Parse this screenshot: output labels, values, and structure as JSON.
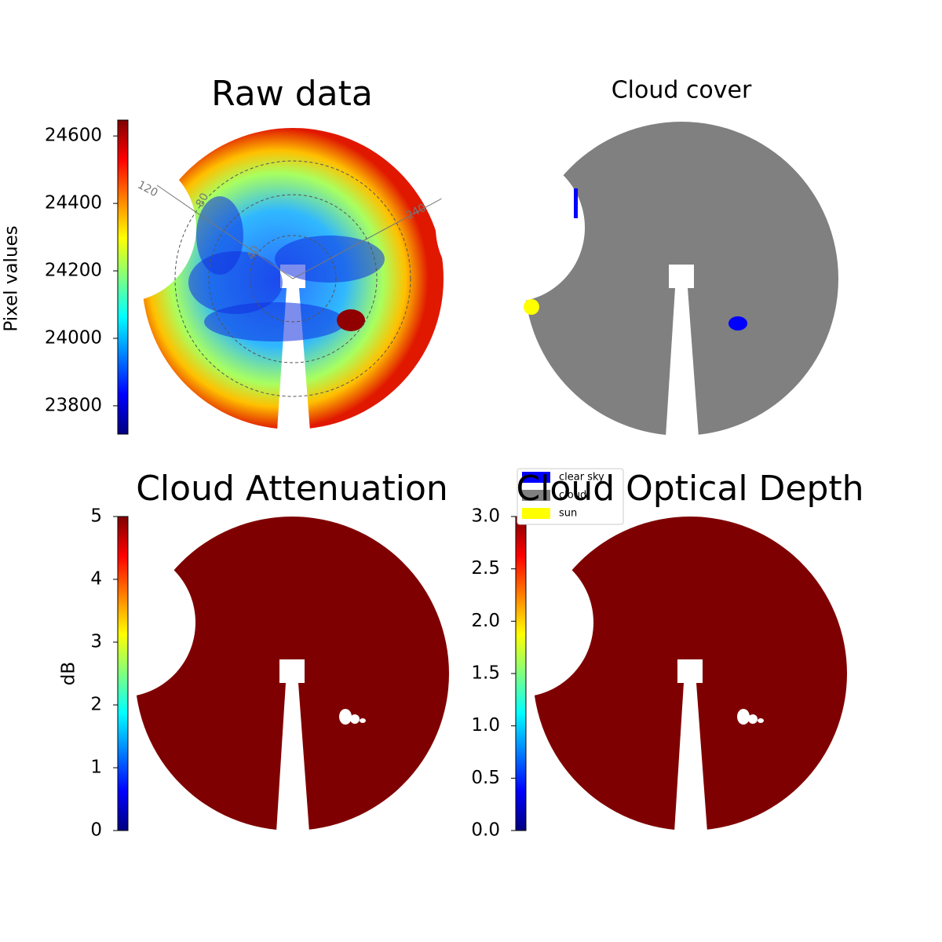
{
  "chart_data": [
    {
      "type": "image",
      "title": "Raw data",
      "ylabel": "Pixel values",
      "ylim": [
        23716,
        24647
      ],
      "yticks": [
        23800,
        24000,
        24200,
        24400,
        24600
      ],
      "annotations": [
        "120",
        "80",
        "40",
        "240"
      ]
    },
    {
      "type": "image",
      "title": "Cloud cover",
      "series": [
        {
          "name": "clear sky",
          "color": "#0000ff"
        },
        {
          "name": "cloud",
          "color": "#808080"
        },
        {
          "name": "sun",
          "color": "#ffff00"
        }
      ]
    },
    {
      "type": "image",
      "title": "Cloud Attenuation",
      "ylabel": "dB",
      "ylim": [
        0,
        5
      ],
      "yticks": [
        0,
        1,
        2,
        3,
        4,
        5
      ]
    },
    {
      "type": "image",
      "title": "Cloud Optical Depth",
      "ylim": [
        0,
        3
      ],
      "yticks": [
        {
          "value": 0,
          "label": "0.0"
        },
        {
          "value": 0.5,
          "label": "0.5"
        },
        {
          "value": 1,
          "label": "1.0"
        },
        {
          "value": 1.5,
          "label": "1.5"
        },
        {
          "value": 2,
          "label": "2.0"
        },
        {
          "value": 2.5,
          "label": "2.5"
        },
        {
          "value": 3,
          "label": "3.0"
        }
      ]
    }
  ]
}
